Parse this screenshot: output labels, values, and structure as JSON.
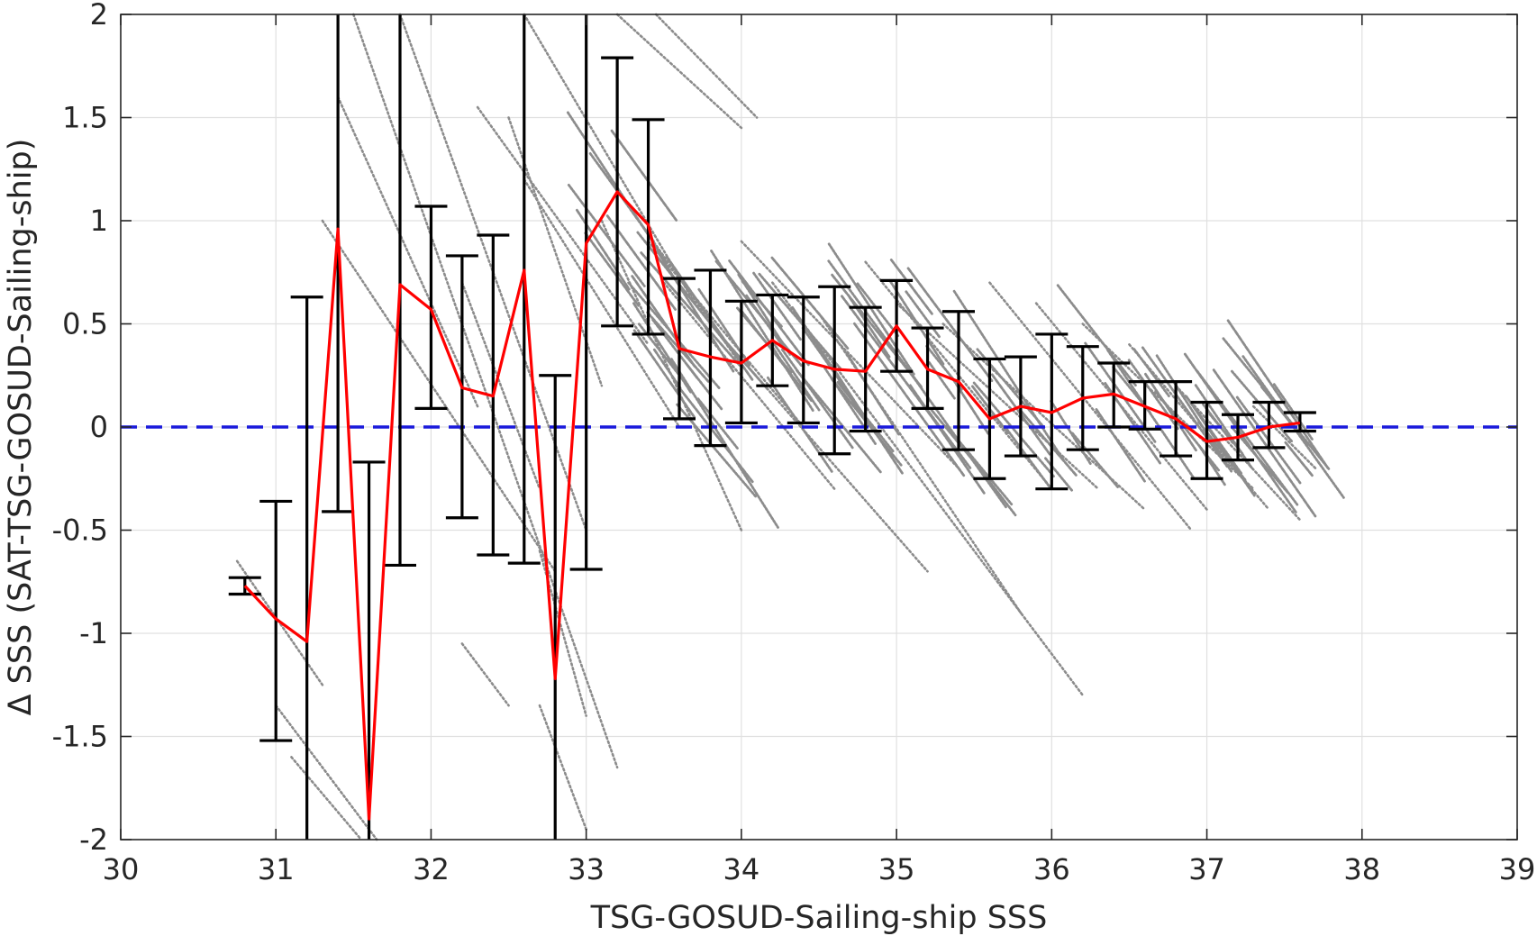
{
  "chart_data": {
    "type": "scatter",
    "xlabel": "TSG-GOSUD-Sailing-ship SSS",
    "ylabel": "Δ SSS (SAT-TSG-GOSUD-Sailing-ship)",
    "xlim": [
      30,
      39
    ],
    "ylim": [
      -2,
      2
    ],
    "x_ticks": [
      30,
      31,
      32,
      33,
      34,
      35,
      36,
      37,
      38,
      39
    ],
    "x_tick_labels": [
      "30",
      "31",
      "32",
      "33",
      "34",
      "35",
      "36",
      "37",
      "38",
      "39"
    ],
    "y_ticks": [
      -2,
      -1.5,
      -1,
      -0.5,
      0,
      0.5,
      1,
      1.5,
      2
    ],
    "y_tick_labels": [
      "-2",
      "-1.5",
      "-1",
      "-0.5",
      "0",
      "0.5",
      "1",
      "1.5",
      "2"
    ],
    "grid": true,
    "reference_line": {
      "y": 0,
      "style": "dashed",
      "color": "#1a1adb"
    },
    "colors": {
      "scatter": "#8c8c8c",
      "mean": "#ff0000",
      "errorbar": "#000000",
      "zero_line": "#1a1adb",
      "grid": "#e0e0e0",
      "axis": "#262626"
    },
    "scatter_streaks": [
      {
        "x0": 31.3,
        "y0": 1.0,
        "x1": 32.8,
        "y1": -0.7
      },
      {
        "x0": 30.75,
        "y0": -0.65,
        "x1": 31.3,
        "y1": -1.25
      },
      {
        "x0": 31.0,
        "y0": -1.35,
        "x1": 31.65,
        "y1": -2.0
      },
      {
        "x0": 31.1,
        "y0": -1.6,
        "x1": 31.55,
        "y1": -2.0
      },
      {
        "x0": 31.5,
        "y0": 2.0,
        "x1": 33.2,
        "y1": -1.65
      },
      {
        "x0": 31.8,
        "y0": 2.0,
        "x1": 33.0,
        "y1": -0.5
      },
      {
        "x0": 31.4,
        "y0": 1.6,
        "x1": 32.3,
        "y1": 0.1
      },
      {
        "x0": 32.2,
        "y0": 0.7,
        "x1": 32.7,
        "y1": -0.3
      },
      {
        "x0": 32.5,
        "y0": 1.5,
        "x1": 33.1,
        "y1": 0.2
      },
      {
        "x0": 32.2,
        "y0": -1.05,
        "x1": 32.5,
        "y1": -1.35
      },
      {
        "x0": 32.7,
        "y0": -0.6,
        "x1": 33.0,
        "y1": -1.4
      },
      {
        "x0": 32.7,
        "y0": -1.35,
        "x1": 33.0,
        "y1": -1.95
      },
      {
        "x0": 32.3,
        "y0": 1.55,
        "x1": 33.4,
        "y1": 0.4
      },
      {
        "x0": 32.6,
        "y0": 1.2,
        "x1": 33.6,
        "y1": 0.0
      },
      {
        "x0": 32.6,
        "y0": 2.0,
        "x1": 33.7,
        "y1": 0.6
      },
      {
        "x0": 33.2,
        "y0": 2.0,
        "x1": 34.0,
        "y1": 1.45
      },
      {
        "x0": 33.45,
        "y0": 2.0,
        "x1": 34.1,
        "y1": 1.5
      },
      {
        "x0": 33.1,
        "y0": 1.25,
        "x1": 34.0,
        "y1": 0.3
      },
      {
        "x0": 33.1,
        "y0": 1.0,
        "x1": 34.0,
        "y1": -0.5
      },
      {
        "x0": 33.4,
        "y0": 0.9,
        "x1": 34.4,
        "y1": 0.0
      },
      {
        "x0": 33.5,
        "y0": 0.7,
        "x1": 34.6,
        "y1": -0.3
      },
      {
        "x0": 33.8,
        "y0": 0.5,
        "x1": 35.2,
        "y1": -0.7
      },
      {
        "x0": 34.0,
        "y0": 0.9,
        "x1": 35.4,
        "y1": -0.2
      },
      {
        "x0": 34.2,
        "y0": 0.7,
        "x1": 36.2,
        "y1": -1.3
      },
      {
        "x0": 34.5,
        "y0": 0.55,
        "x1": 35.8,
        "y1": -0.9
      },
      {
        "x0": 34.8,
        "y0": 0.8,
        "x1": 36.0,
        "y1": -0.3
      },
      {
        "x0": 35.0,
        "y0": 0.6,
        "x1": 36.3,
        "y1": -0.3
      },
      {
        "x0": 35.3,
        "y0": 0.5,
        "x1": 36.6,
        "y1": -0.4
      },
      {
        "x0": 35.6,
        "y0": 0.7,
        "x1": 36.9,
        "y1": -0.5
      },
      {
        "x0": 35.9,
        "y0": 0.6,
        "x1": 37.0,
        "y1": -0.4
      },
      {
        "x0": 36.2,
        "y0": 0.5,
        "x1": 37.3,
        "y1": -0.3
      },
      {
        "x0": 36.5,
        "y0": 0.4,
        "x1": 37.4,
        "y1": -0.4
      },
      {
        "x0": 36.8,
        "y0": 0.2,
        "x1": 37.6,
        "y1": -0.45
      },
      {
        "x0": 37.3,
        "y0": 0.1,
        "x1": 37.7,
        "y1": -0.2
      }
    ],
    "mean_line": {
      "x": [
        30.8,
        31.0,
        31.2,
        31.4,
        31.6,
        31.8,
        32.0,
        32.2,
        32.4,
        32.6,
        32.8,
        33.0,
        33.2,
        33.4,
        33.6,
        33.8,
        34.0,
        34.2,
        34.4,
        34.6,
        34.8,
        35.0,
        35.2,
        35.4,
        35.6,
        35.8,
        36.0,
        36.2,
        36.4,
        36.6,
        36.8,
        37.0,
        37.2,
        37.4,
        37.6
      ],
      "y": [
        -0.77,
        -0.93,
        -1.04,
        0.96,
        -1.9,
        0.69,
        0.57,
        0.19,
        0.15,
        0.76,
        -1.22,
        0.89,
        1.14,
        0.98,
        0.38,
        0.34,
        0.31,
        0.42,
        0.32,
        0.28,
        0.27,
        0.49,
        0.28,
        0.22,
        0.04,
        0.1,
        0.07,
        0.14,
        0.16,
        0.1,
        0.04,
        -0.07,
        -0.05,
        0.0,
        0.02
      ]
    },
    "error_bars": {
      "x": [
        30.8,
        31.0,
        31.2,
        31.4,
        31.6,
        31.8,
        32.0,
        32.2,
        32.4,
        32.6,
        32.8,
        33.0,
        33.2,
        33.4,
        33.6,
        33.8,
        34.0,
        34.2,
        34.4,
        34.6,
        34.8,
        35.0,
        35.2,
        35.4,
        35.6,
        35.8,
        36.0,
        36.2,
        36.4,
        36.6,
        36.8,
        37.0,
        37.2,
        37.4,
        37.6
      ],
      "lower": [
        -0.81,
        -1.52,
        -2.0,
        -0.41,
        -2.0,
        -0.67,
        0.09,
        -0.44,
        -0.62,
        -0.66,
        -2.0,
        -0.69,
        0.49,
        0.45,
        0.04,
        -0.09,
        0.02,
        0.2,
        0.02,
        -0.13,
        -0.02,
        0.27,
        0.09,
        -0.11,
        -0.25,
        -0.14,
        -0.3,
        -0.11,
        0.0,
        -0.01,
        -0.14,
        -0.25,
        -0.16,
        -0.1,
        -0.02
      ],
      "upper": [
        -0.73,
        -0.36,
        0.63,
        2.0,
        -0.17,
        2.0,
        1.07,
        0.83,
        0.93,
        2.0,
        0.25,
        2.0,
        1.79,
        1.49,
        0.72,
        0.76,
        0.61,
        0.64,
        0.63,
        0.68,
        0.58,
        0.71,
        0.48,
        0.56,
        0.33,
        0.34,
        0.45,
        0.39,
        0.31,
        0.22,
        0.22,
        0.12,
        0.06,
        0.12,
        0.07
      ]
    }
  }
}
